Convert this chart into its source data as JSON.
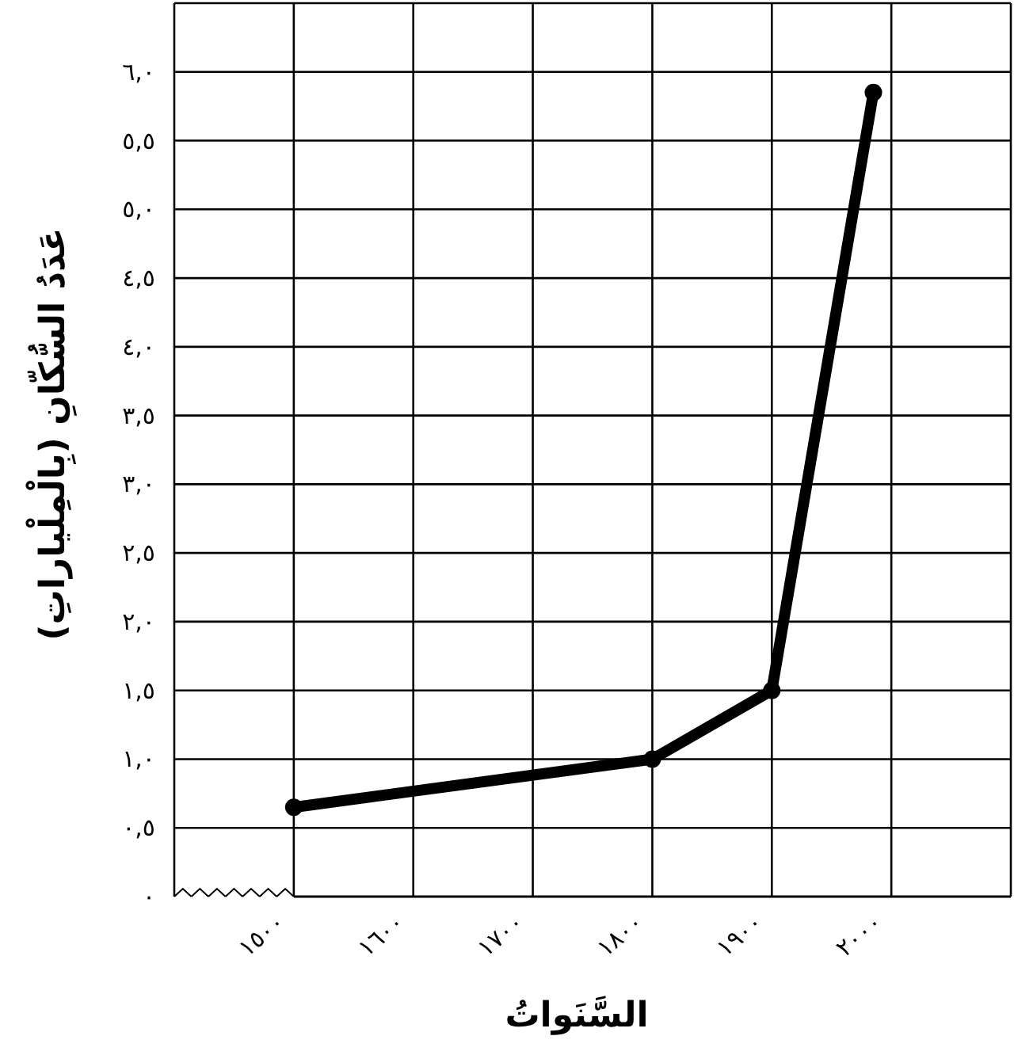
{
  "chart_data": {
    "type": "line",
    "xlabel": "السَّنَواتُ",
    "ylabel": "عَدَدُ السُّكّانِ (بِالْمِلْياراتِ)",
    "x": [
      1500,
      1800,
      1900,
      1985
    ],
    "series": [
      {
        "color": "#000000",
        "values": [
          0.65,
          1.0,
          1.5,
          5.85
        ]
      }
    ],
    "xlim": [
      1400,
      2100
    ],
    "xticks": [
      {
        "value": 1500,
        "label": "١٥٠٠"
      },
      {
        "value": 1600,
        "label": "١٦٠٠"
      },
      {
        "value": 1700,
        "label": "١٧٠٠"
      },
      {
        "value": 1800,
        "label": "١٨٠٠"
      },
      {
        "value": 1900,
        "label": "١٩٠٠"
      },
      {
        "value": 2000,
        "label": "٢٠٠٠"
      }
    ],
    "ylim": [
      0,
      6.5
    ],
    "yticks": [
      {
        "value": 0,
        "label": "٠"
      },
      {
        "value": 0.5,
        "label": "٠,٥"
      },
      {
        "value": 1,
        "label": "١,٠"
      },
      {
        "value": 1.5,
        "label": "١,٥"
      },
      {
        "value": 2,
        "label": "٢,٠"
      },
      {
        "value": 2.5,
        "label": "٢,٥"
      },
      {
        "value": 3,
        "label": "٣,٠"
      },
      {
        "value": 3.5,
        "label": "٣,٥"
      },
      {
        "value": 4,
        "label": "٤,٠"
      },
      {
        "value": 4.5,
        "label": "٤,٥"
      },
      {
        "value": 5,
        "label": "٥,٠"
      },
      {
        "value": 5.5,
        "label": "٥,٥"
      },
      {
        "value": 6,
        "label": "٦,٠"
      }
    ],
    "grid": true,
    "marker": "circle",
    "line_style": "solid"
  }
}
